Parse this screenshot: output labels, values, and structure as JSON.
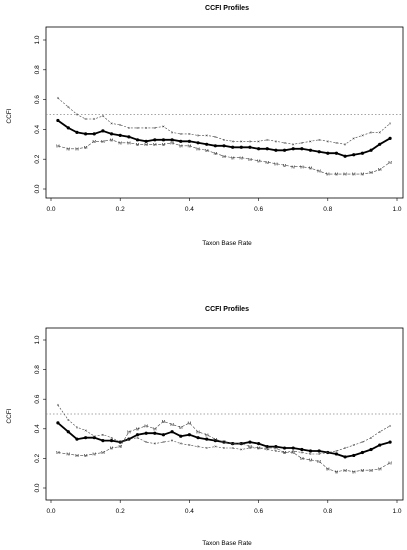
{
  "chart_data": [
    {
      "type": "line",
      "title": "CCFI Profiles",
      "xlabel": "Taxon Base Rate",
      "ylabel": "CCFI",
      "xlim": [
        0,
        1
      ],
      "ylim": [
        0,
        1
      ],
      "xticks": [
        "0.0",
        "0.2",
        "0.4",
        "0.6",
        "0.8",
        "1.0"
      ],
      "yticks": [
        "0.0",
        "0.2",
        "0.4",
        "0.6",
        "0.8",
        "1.0"
      ],
      "reference_line": 0.5,
      "x": [
        0.02,
        0.05,
        0.075,
        0.1,
        0.125,
        0.15,
        0.175,
        0.2,
        0.225,
        0.25,
        0.275,
        0.3,
        0.325,
        0.35,
        0.375,
        0.4,
        0.425,
        0.45,
        0.475,
        0.5,
        0.525,
        0.55,
        0.575,
        0.6,
        0.625,
        0.65,
        0.675,
        0.7,
        0.725,
        0.75,
        0.775,
        0.8,
        0.825,
        0.85,
        0.875,
        0.9,
        0.925,
        0.95,
        0.98
      ],
      "series": [
        {
          "values": [
            0.46,
            0.41,
            0.38,
            0.37,
            0.37,
            0.39,
            0.37,
            0.36,
            0.35,
            0.33,
            0.32,
            0.33,
            0.33,
            0.33,
            0.32,
            0.32,
            0.31,
            0.3,
            0.29,
            0.29,
            0.28,
            0.28,
            0.28,
            0.27,
            0.27,
            0.26,
            0.26,
            0.27,
            0.27,
            0.26,
            0.25,
            0.24,
            0.24,
            0.22,
            0.23,
            0.24,
            0.26,
            0.3,
            0.34
          ]
        },
        {
          "values": [
            0.61,
            0.55,
            0.5,
            0.47,
            0.47,
            0.49,
            0.44,
            0.43,
            0.41,
            0.41,
            0.41,
            0.41,
            0.42,
            0.38,
            0.37,
            0.37,
            0.36,
            0.36,
            0.35,
            0.33,
            0.32,
            0.32,
            0.32,
            0.32,
            0.33,
            0.32,
            0.31,
            0.3,
            0.31,
            0.32,
            0.33,
            0.32,
            0.31,
            0.3,
            0.34,
            0.36,
            0.38,
            0.38,
            0.44
          ]
        },
        {
          "values": [
            0.29,
            0.27,
            0.27,
            0.28,
            0.32,
            0.32,
            0.33,
            0.31,
            0.31,
            0.3,
            0.3,
            0.3,
            0.3,
            0.31,
            0.29,
            0.29,
            0.27,
            0.26,
            0.24,
            0.22,
            0.21,
            0.21,
            0.2,
            0.19,
            0.18,
            0.17,
            0.16,
            0.15,
            0.15,
            0.14,
            0.12,
            0.1,
            0.1,
            0.1,
            0.1,
            0.1,
            0.11,
            0.13,
            0.18
          ]
        }
      ]
    },
    {
      "type": "line",
      "title": "CCFI Profiles",
      "xlabel": "Taxon Base Rate",
      "ylabel": "CCFI",
      "xlim": [
        0,
        1
      ],
      "ylim": [
        0,
        1
      ],
      "xticks": [
        "0.0",
        "0.2",
        "0.4",
        "0.6",
        "0.8",
        "1.0"
      ],
      "yticks": [
        "0.0",
        "0.2",
        "0.4",
        "0.6",
        "0.8",
        "1.0"
      ],
      "reference_line": 0.5,
      "x": [
        0.02,
        0.05,
        0.075,
        0.1,
        0.125,
        0.15,
        0.175,
        0.2,
        0.225,
        0.25,
        0.275,
        0.3,
        0.325,
        0.35,
        0.375,
        0.4,
        0.425,
        0.45,
        0.475,
        0.5,
        0.525,
        0.55,
        0.575,
        0.6,
        0.625,
        0.65,
        0.675,
        0.7,
        0.725,
        0.75,
        0.775,
        0.8,
        0.825,
        0.85,
        0.875,
        0.9,
        0.925,
        0.95,
        0.98
      ],
      "series": [
        {
          "values": [
            0.44,
            0.38,
            0.33,
            0.34,
            0.34,
            0.32,
            0.32,
            0.31,
            0.33,
            0.36,
            0.37,
            0.37,
            0.36,
            0.38,
            0.35,
            0.36,
            0.34,
            0.33,
            0.32,
            0.31,
            0.3,
            0.3,
            0.31,
            0.3,
            0.28,
            0.28,
            0.27,
            0.27,
            0.26,
            0.25,
            0.25,
            0.24,
            0.23,
            0.21,
            0.22,
            0.24,
            0.26,
            0.29,
            0.31
          ]
        },
        {
          "values": [
            0.56,
            0.46,
            0.41,
            0.39,
            0.35,
            0.36,
            0.34,
            0.31,
            0.33,
            0.34,
            0.31,
            0.3,
            0.31,
            0.32,
            0.3,
            0.29,
            0.28,
            0.27,
            0.28,
            0.27,
            0.27,
            0.26,
            0.27,
            0.27,
            0.26,
            0.25,
            0.24,
            0.25,
            0.24,
            0.23,
            0.23,
            0.24,
            0.25,
            0.27,
            0.29,
            0.31,
            0.34,
            0.38,
            0.42
          ]
        },
        {
          "values": [
            0.24,
            0.23,
            0.22,
            0.22,
            0.23,
            0.24,
            0.27,
            0.28,
            0.38,
            0.4,
            0.42,
            0.4,
            0.45,
            0.43,
            0.41,
            0.44,
            0.38,
            0.36,
            0.33,
            0.31,
            0.3,
            0.3,
            0.28,
            0.27,
            0.27,
            0.27,
            0.24,
            0.24,
            0.2,
            0.19,
            0.18,
            0.13,
            0.11,
            0.12,
            0.11,
            0.12,
            0.12,
            0.13,
            0.17
          ]
        }
      ]
    }
  ]
}
